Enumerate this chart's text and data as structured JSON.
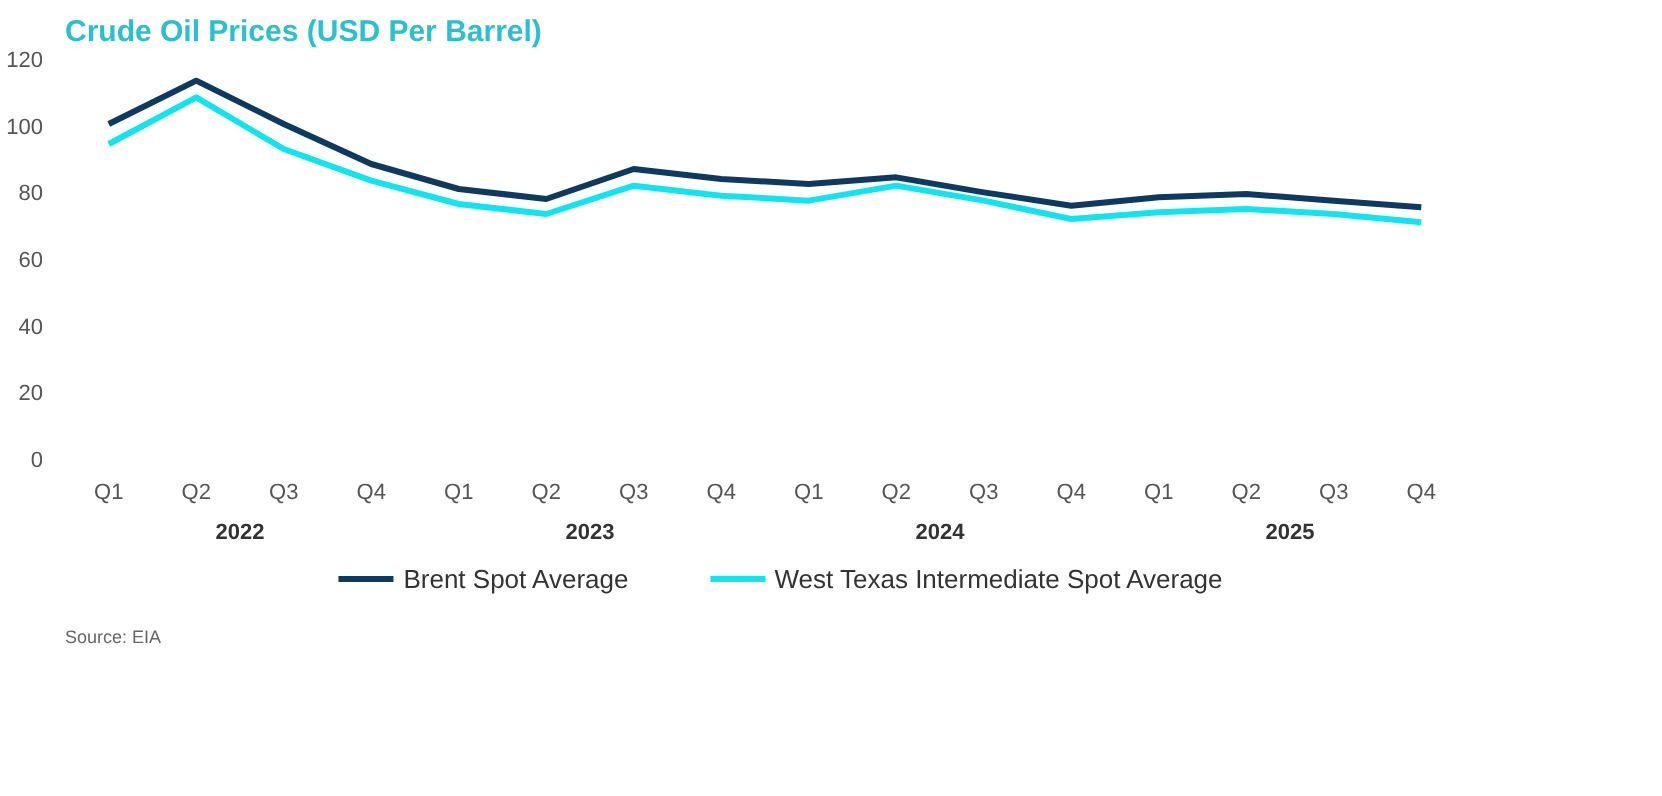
{
  "chart_data": {
    "type": "line",
    "title": "Crude Oil Prices (USD Per Barrel)",
    "categories": [
      "Q1",
      "Q2",
      "Q3",
      "Q4",
      "Q1",
      "Q2",
      "Q3",
      "Q4",
      "Q1",
      "Q2",
      "Q3",
      "Q4",
      "Q1",
      "Q2",
      "Q3",
      "Q4"
    ],
    "ylim": [
      0,
      120
    ],
    "yticks": [
      0,
      20,
      40,
      60,
      80,
      100,
      120
    ],
    "grid": false,
    "legend": "bottom",
    "marker": "none",
    "line_style": "solid",
    "series": [
      {
        "name": "Brent Spot Average",
        "color": "#0e3a62",
        "values": [
          100.5,
          113.5,
          100.5,
          88.5,
          81,
          78,
          87,
          84,
          82.5,
          84.5,
          80,
          76,
          78.5,
          79.5,
          77.5,
          75.5
        ]
      },
      {
        "name": "West Texas Intermediate Spot Average",
        "color": "#12e4ef",
        "values": [
          94.5,
          108.5,
          93,
          83.5,
          76.5,
          73.5,
          82,
          79,
          77.5,
          82,
          77.5,
          72,
          74,
          75,
          73.5,
          71
        ]
      }
    ],
    "annotations": [
      "2022",
      "2023",
      "2024",
      "2025",
      "Source: EIA"
    ]
  }
}
